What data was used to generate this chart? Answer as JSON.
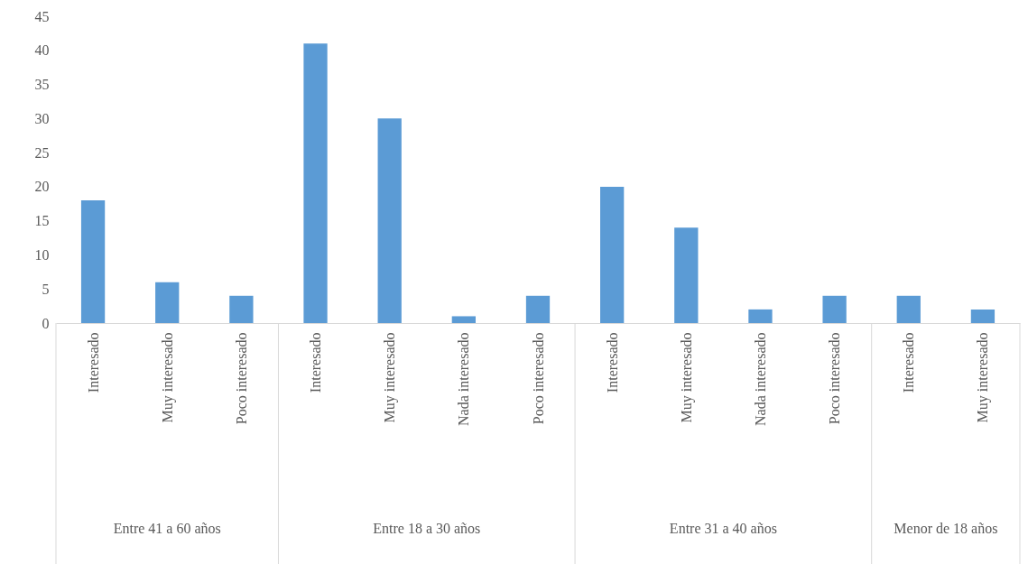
{
  "chart_data": {
    "type": "bar",
    "categories": [
      "Interesado",
      "Muy interesado",
      "Poco interesado",
      "Interesado",
      "Muy interesado",
      "Nada interesado",
      "Poco interesado",
      "Interesado",
      "Muy interesado",
      "Nada interesado",
      "Poco interesado",
      "Interesado",
      "Muy interesado"
    ],
    "values": [
      18,
      6,
      4,
      41,
      30,
      1,
      4,
      20,
      14,
      2,
      4,
      4,
      2
    ],
    "color": "#5b9bd5",
    "ylim": [
      0,
      45
    ],
    "yticks": [
      0,
      5,
      10,
      15,
      20,
      25,
      30,
      35,
      40,
      45
    ],
    "annotations": [
      "Entre 41 a 60 años",
      "Entre 18 a 30 años",
      "Entre 31 a 40 años",
      "Menor de 18 años"
    ]
  }
}
